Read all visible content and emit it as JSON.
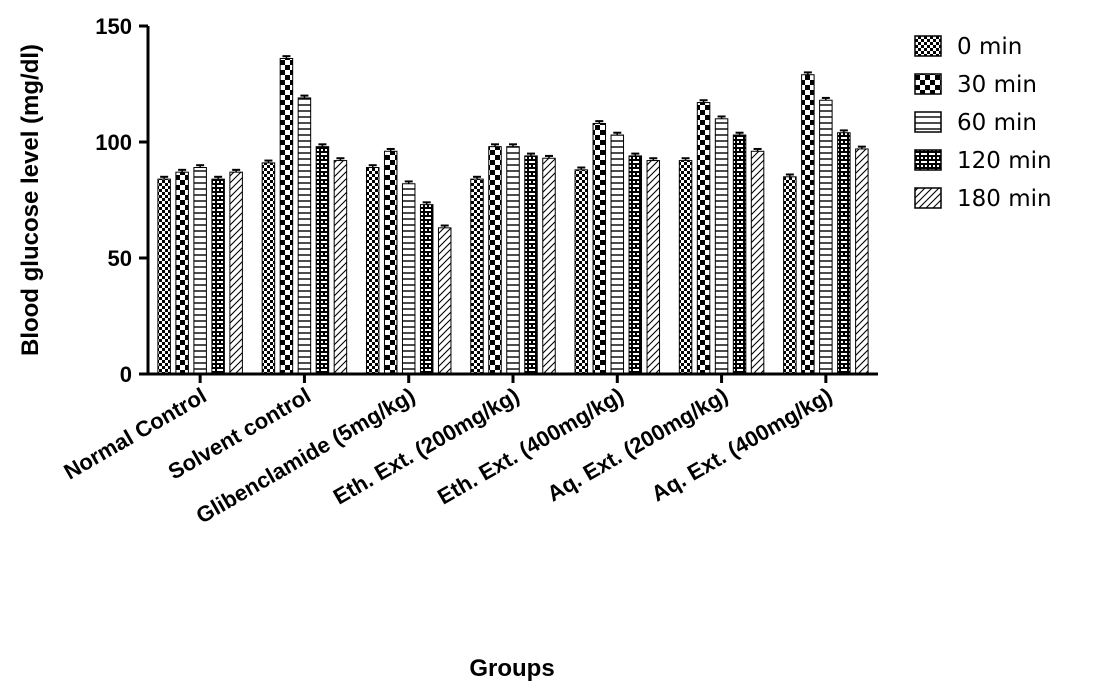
{
  "chart_data": {
    "type": "bar",
    "title": "",
    "xlabel": "Groups",
    "ylabel": "Blood glucose level (mg/dl)",
    "ylim": [
      0,
      150
    ],
    "yticks": [
      0,
      50,
      100,
      150
    ],
    "grid": false,
    "legend_position": "top-right",
    "categories": [
      "Normal Control",
      "Solvent control",
      "Glibenclamide (5mg/kg)",
      "Eth. Ext. (200mg/kg)",
      "Eth. Ext. (400mg/kg)",
      "Aq. Ext. (200mg/kg)",
      "Aq. Ext. (400mg/kg)"
    ],
    "series": [
      {
        "name": "0 min",
        "pattern": "dots",
        "values": [
          84,
          91,
          89,
          84,
          88,
          92,
          85
        ]
      },
      {
        "name": "30 min",
        "pattern": "checker",
        "values": [
          87,
          136,
          96,
          98,
          108,
          117,
          129
        ]
      },
      {
        "name": "60 min",
        "pattern": "horizontal",
        "values": [
          89,
          119,
          82,
          98,
          103,
          110,
          118
        ]
      },
      {
        "name": "120 min",
        "pattern": "brick",
        "values": [
          84,
          98,
          73,
          94,
          94,
          103,
          104
        ]
      },
      {
        "name": "180 min",
        "pattern": "diagonal",
        "values": [
          87,
          92,
          63,
          93,
          92,
          96,
          97
        ]
      }
    ],
    "errors": [
      [
        1,
        1,
        1,
        1,
        1,
        1,
        1
      ],
      [
        1,
        1,
        1,
        1,
        1,
        1,
        1
      ],
      [
        1,
        1,
        1,
        1,
        1,
        1,
        1
      ],
      [
        1,
        1,
        1,
        1,
        1,
        1,
        1
      ],
      [
        1,
        1,
        1,
        1,
        1,
        1,
        1
      ]
    ]
  }
}
